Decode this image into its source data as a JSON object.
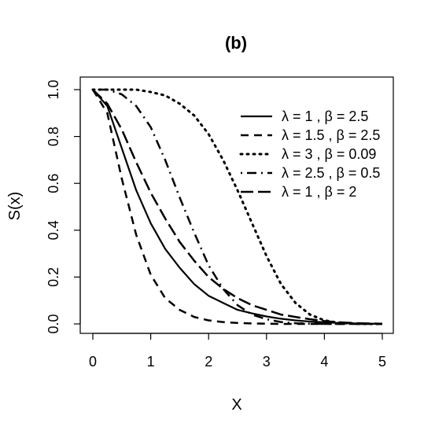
{
  "chart_data": {
    "type": "line",
    "title": "(b)",
    "xlabel": "X",
    "ylabel": "S(x)",
    "xlim": [
      0,
      5
    ],
    "ylim": [
      0,
      1
    ],
    "x_ticks": [
      "0",
      "1",
      "2",
      "3",
      "4",
      "5"
    ],
    "y_ticks": [
      "0.0",
      "0.2",
      "0.4",
      "0.6",
      "0.8",
      "1.0"
    ],
    "grid": false,
    "legend_position": "top-right",
    "x": [
      0,
      0.25,
      0.5,
      0.75,
      1,
      1.25,
      1.5,
      1.75,
      2,
      2.25,
      2.5,
      2.75,
      3,
      3.25,
      3.5,
      3.75,
      4,
      4.25,
      4.5,
      4.75,
      5
    ],
    "series": [
      {
        "name": "λ = 1 , β = 2.5",
        "dash": "solid",
        "width": 2.2,
        "values": [
          1.0,
          0.93,
          0.75,
          0.57,
          0.43,
          0.32,
          0.24,
          0.17,
          0.12,
          0.09,
          0.06,
          0.045,
          0.032,
          0.022,
          0.015,
          0.01,
          0.007,
          0.004,
          0.002,
          0.001,
          0.0
        ]
      },
      {
        "name": "λ = 1.5 , β = 2.5",
        "dash": "dashed",
        "width": 2.5,
        "values": [
          1.0,
          0.9,
          0.62,
          0.38,
          0.21,
          0.11,
          0.06,
          0.03,
          0.015,
          0.008,
          0.004,
          0.002,
          0.001,
          0.0,
          0.0,
          0.0,
          0.0,
          0.0,
          0.0,
          0.0,
          0.0
        ]
      },
      {
        "name": "λ = 3 , β = 0.09",
        "dash": "dotted",
        "width": 3,
        "values": [
          1.0,
          1.0,
          1.0,
          1.0,
          0.99,
          0.975,
          0.94,
          0.89,
          0.81,
          0.7,
          0.57,
          0.43,
          0.29,
          0.17,
          0.09,
          0.04,
          0.015,
          0.005,
          0.001,
          0.0,
          0.0
        ]
      },
      {
        "name": "λ = 2.5 , β = 0.5",
        "dash": "dotdash",
        "width": 2.5,
        "values": [
          1.0,
          1.0,
          0.98,
          0.93,
          0.84,
          0.7,
          0.54,
          0.39,
          0.25,
          0.15,
          0.08,
          0.04,
          0.02,
          0.008,
          0.003,
          0.001,
          0.0,
          0.0,
          0.0,
          0.0,
          0.0
        ]
      },
      {
        "name": "λ = 1 , β = 2",
        "dash": "longdash",
        "width": 2.5,
        "values": [
          1.0,
          0.94,
          0.83,
          0.69,
          0.56,
          0.45,
          0.35,
          0.27,
          0.2,
          0.15,
          0.11,
          0.08,
          0.06,
          0.04,
          0.03,
          0.02,
          0.012,
          0.007,
          0.004,
          0.002,
          0.001
        ]
      }
    ]
  }
}
